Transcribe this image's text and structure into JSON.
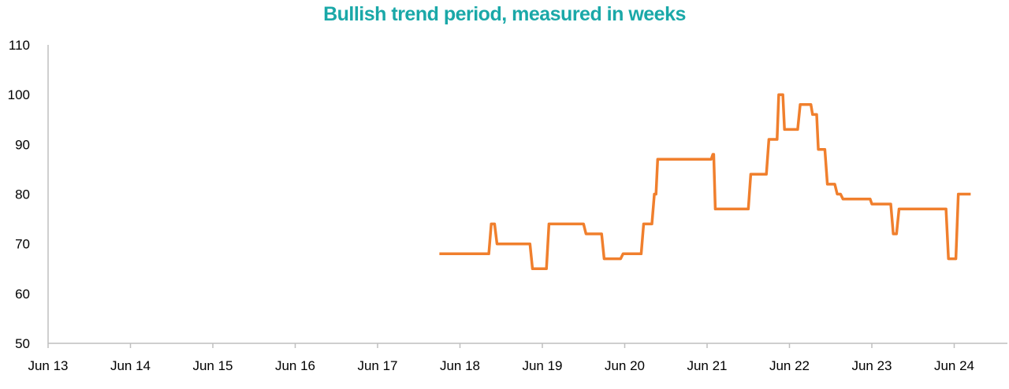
{
  "chart_data": {
    "type": "line",
    "title": "Bullish trend period, measured in weeks",
    "xlabel": "",
    "ylabel": "",
    "ylim": [
      50,
      110
    ],
    "yticks": [
      "50",
      "60",
      "70",
      "80",
      "90",
      "100",
      "110"
    ],
    "xticks": [
      "Jun 13",
      "Jun 14",
      "Jun 15",
      "Jun 16",
      "Jun 17",
      "Jun 18",
      "Jun 19",
      "Jun 20",
      "Jun 21",
      "Jun 22",
      "Jun 23",
      "Jun 24"
    ],
    "grid": false,
    "line_color": "#f07f2d",
    "series": [
      {
        "x": [
          2017.75,
          2018.35,
          2018.38,
          2018.42,
          2018.45,
          2018.85,
          2018.88,
          2019.05,
          2019.08,
          2019.5,
          2019.53,
          2019.72,
          2019.75,
          2019.95,
          2019.98,
          2020.2,
          2020.23,
          2020.33,
          2020.36,
          2020.38,
          2020.4,
          2021.05,
          2021.07,
          2021.08,
          2021.1,
          2021.5,
          2021.53,
          2021.72,
          2021.75,
          2021.85,
          2021.87,
          2021.92,
          2021.94,
          2022.1,
          2022.13,
          2022.26,
          2022.28,
          2022.33,
          2022.35,
          2022.43,
          2022.46,
          2022.55,
          2022.58,
          2022.62,
          2022.65,
          2022.98,
          2023.0,
          2023.23,
          2023.26,
          2023.3,
          2023.33,
          2023.9,
          2023.93,
          2024.02,
          2024.05,
          2024.2
        ],
        "y": [
          68,
          68,
          74,
          74,
          70,
          70,
          65,
          65,
          74,
          74,
          72,
          72,
          67,
          67,
          68,
          68,
          74,
          74,
          80,
          80,
          87,
          87,
          88,
          88,
          77,
          77,
          84,
          84,
          91,
          91,
          100,
          100,
          93,
          93,
          98,
          98,
          96,
          96,
          89,
          89,
          82,
          82,
          80,
          80,
          79,
          79,
          78,
          78,
          72,
          72,
          77,
          77,
          67,
          67,
          80,
          80
        ]
      }
    ]
  }
}
